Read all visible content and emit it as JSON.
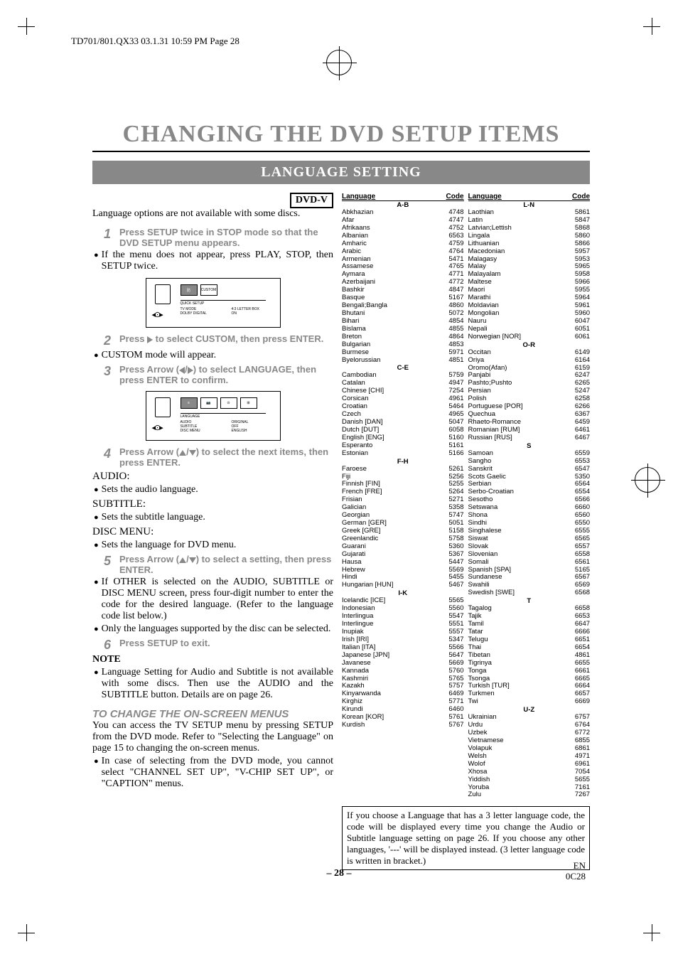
{
  "header_line": "TD701/801.QX33  03.1.31 10:59 PM  Page 28",
  "title": "CHANGING THE DVD SETUP ITEMS",
  "subtitle": "LANGUAGE SETTING",
  "dvd_badge": "DVD-V",
  "intro": "Language options are not available with some discs.",
  "step1": {
    "num": "1",
    "text": "Press SETUP twice in STOP mode so that the DVD SETUP menu appears."
  },
  "bullet1": "If the menu does not appear, press PLAY, STOP, then SETUP twice.",
  "diagram1": {
    "tabs": [
      "防",
      "CUSTOM"
    ],
    "label": "QUICK SETUP",
    "opts_left": "TV MODE\nDOLBY DIGITAL",
    "opts_right": "4:3 LETTER BOX\nON"
  },
  "step2": {
    "num": "2",
    "text_pre": "Press ",
    "text_post": " to select CUSTOM, then press ENTER."
  },
  "bullet2": "CUSTOM mode will appear.",
  "step3": {
    "num": "3",
    "text_pre": "Press Arrow (",
    "text_post": ") to select LANGUAGE, then press ENTER to confirm."
  },
  "diagram2": {
    "tabs": [
      "≡",
      "📷",
      "⊙",
      "⊞"
    ],
    "label": "LANGUAGE",
    "opts_left": "AUDIO\nSUBTITLE\nDISC MENU",
    "opts_right": "ORIGINAL\nOFF\nENGLISH"
  },
  "step4": {
    "num": "4",
    "text_pre": "Press Arrow (",
    "text_post": ") to select the next items, then press ENTER."
  },
  "audio_label": "AUDIO:",
  "audio_bullet": "Sets the audio language.",
  "subtitle_label": "SUBTITLE:",
  "subtitle_bullet": "Sets the subtitle language.",
  "disc_label": "DISC MENU:",
  "disc_bullet": "Sets the language for DVD menu.",
  "step5": {
    "num": "5",
    "text_pre": "Press Arrow (",
    "text_post": ") to select a setting, then press ENTER."
  },
  "bullet5a": "If OTHER is selected on the AUDIO, SUBTITLE or DISC MENU screen, press four-digit number to enter the code for the desired language. (Refer to the language code list below.)",
  "bullet5b": "Only the languages supported by the disc can be selected.",
  "step6": {
    "num": "6",
    "text": "Press SETUP to exit."
  },
  "note_label": "NOTE",
  "note_bullet": "Language Setting for Audio and Subtitle is not available with some discs. Then use the AUDIO and the SUBTITLE button. Details are on page 26.",
  "change_title": "TO CHANGE THE ON-SCREEN MENUS",
  "change_body": "You can access the TV SETUP menu by pressing SETUP from the DVD mode. Refer to \"Selecting the Language\" on page 15 to changing the on-screen menus.",
  "change_bullet": "In case of selecting from the DVD mode, you cannot select \"CHANNEL SET UP\", \"V-CHIP SET UP\", or \"CAPTION\" menus.",
  "table_header": {
    "lang": "Language",
    "code": "Code"
  },
  "col1": [
    {
      "section": "A-B"
    },
    {
      "l": "Abkhazian",
      "c": "4748"
    },
    {
      "l": "Afar",
      "c": "4747"
    },
    {
      "l": "Afrikaans",
      "c": "4752"
    },
    {
      "l": "Albanian",
      "c": "6563"
    },
    {
      "l": "Amharic",
      "c": "4759"
    },
    {
      "l": "Arabic",
      "c": "4764"
    },
    {
      "l": "Armenian",
      "c": "5471"
    },
    {
      "l": "Assamese",
      "c": "4765"
    },
    {
      "l": "Aymara",
      "c": "4771"
    },
    {
      "l": "Azerbaijani",
      "c": "4772"
    },
    {
      "l": "Bashkir",
      "c": "4847"
    },
    {
      "l": "Basque",
      "c": "5167"
    },
    {
      "l": "Bengali;Bangla",
      "c": "4860"
    },
    {
      "l": "Bhutani",
      "c": "5072"
    },
    {
      "l": "Bihari",
      "c": "4854"
    },
    {
      "l": "Bislama",
      "c": "4855"
    },
    {
      "l": "Breton",
      "c": "4864"
    },
    {
      "l": "Bulgarian",
      "c": "4853"
    },
    {
      "l": "Burmese",
      "c": "5971"
    },
    {
      "l": "Byelorussian",
      "c": "4851"
    },
    {
      "section": "C-E"
    },
    {
      "l": "Cambodian",
      "c": "5759"
    },
    {
      "l": "Catalan",
      "c": "4947"
    },
    {
      "l": "Chinese [CHI]",
      "c": "7254"
    },
    {
      "l": "Corsican",
      "c": "4961"
    },
    {
      "l": "Croatian",
      "c": "5464"
    },
    {
      "l": "Czech",
      "c": "4965"
    },
    {
      "l": "Danish [DAN]",
      "c": "5047"
    },
    {
      "l": "Dutch [DUT]",
      "c": "6058"
    },
    {
      "l": "English [ENG]",
      "c": "5160"
    },
    {
      "l": "Esperanto",
      "c": "5161"
    },
    {
      "l": "Estonian",
      "c": "5166"
    },
    {
      "section": "F-H"
    },
    {
      "l": "Faroese",
      "c": "5261"
    },
    {
      "l": "Fiji",
      "c": "5256"
    },
    {
      "l": "Finnish [FIN]",
      "c": "5255"
    },
    {
      "l": "French [FRE]",
      "c": "5264"
    },
    {
      "l": "Frisian",
      "c": "5271"
    },
    {
      "l": "Galician",
      "c": "5358"
    },
    {
      "l": "Georgian",
      "c": "5747"
    },
    {
      "l": "German [GER]",
      "c": "5051"
    },
    {
      "l": "Greek [GRE]",
      "c": "5158"
    },
    {
      "l": "Greenlandic",
      "c": "5758"
    },
    {
      "l": "Guarani",
      "c": "5360"
    },
    {
      "l": "Gujarati",
      "c": "5367"
    },
    {
      "l": "Hausa",
      "c": "5447"
    },
    {
      "l": "Hebrew",
      "c": "5569"
    },
    {
      "l": "Hindi",
      "c": "5455"
    },
    {
      "l": "Hungarian [HUN]",
      "c": "5467"
    },
    {
      "section": "I-K"
    },
    {
      "l": "Icelandic [ICE]",
      "c": "5565"
    },
    {
      "l": "Indonesian",
      "c": "5560"
    },
    {
      "l": "Interlingua",
      "c": "5547"
    },
    {
      "l": "Interlingue",
      "c": "5551"
    },
    {
      "l": "Inupiak",
      "c": "5557"
    },
    {
      "l": "Irish [IRI]",
      "c": "5347"
    },
    {
      "l": "Italian [ITA]",
      "c": "5566"
    },
    {
      "l": "Japanese [JPN]",
      "c": "5647"
    },
    {
      "l": "Javanese",
      "c": "5669"
    },
    {
      "l": "Kannada",
      "c": "5760"
    },
    {
      "l": "Kashmiri",
      "c": "5765"
    },
    {
      "l": "Kazakh",
      "c": "5757"
    },
    {
      "l": "Kinyarwanda",
      "c": "6469"
    },
    {
      "l": "Kirghiz",
      "c": "5771"
    },
    {
      "l": "Kirundi",
      "c": "6460"
    },
    {
      "l": "Korean [KOR]",
      "c": "5761"
    },
    {
      "l": "Kurdish",
      "c": "5767"
    }
  ],
  "col2": [
    {
      "section": "L-N"
    },
    {
      "l": "Laothian",
      "c": "5861"
    },
    {
      "l": "Latin",
      "c": "5847"
    },
    {
      "l": "Latvian;Lettish",
      "c": "5868"
    },
    {
      "l": "Lingala",
      "c": "5860"
    },
    {
      "l": "Lithuanian",
      "c": "5866"
    },
    {
      "l": "Macedonian",
      "c": "5957"
    },
    {
      "l": "Malagasy",
      "c": "5953"
    },
    {
      "l": "Malay",
      "c": "5965"
    },
    {
      "l": "Malayalam",
      "c": "5958"
    },
    {
      "l": "Maltese",
      "c": "5966"
    },
    {
      "l": "Maori",
      "c": "5955"
    },
    {
      "l": "Marathi",
      "c": "5964"
    },
    {
      "l": "Moldavian",
      "c": "5961"
    },
    {
      "l": "Mongolian",
      "c": "5960"
    },
    {
      "l": "Nauru",
      "c": "6047"
    },
    {
      "l": "Nepali",
      "c": "6051"
    },
    {
      "l": "Norwegian [NOR]",
      "c": "6061"
    },
    {
      "section": "O-R"
    },
    {
      "l": "Occitan",
      "c": "6149"
    },
    {
      "l": "Oriya",
      "c": "6164"
    },
    {
      "l": "Oromo(Afan)",
      "c": "6159"
    },
    {
      "l": "Panjabi",
      "c": "6247"
    },
    {
      "l": "Pashto;Pushto",
      "c": "6265"
    },
    {
      "l": "Persian",
      "c": "5247"
    },
    {
      "l": "Polish",
      "c": "6258"
    },
    {
      "l": "Portuguese [POR]",
      "c": "6266"
    },
    {
      "l": "Quechua",
      "c": "6367"
    },
    {
      "l": "Rhaeto-Romance",
      "c": "6459"
    },
    {
      "l": "Romanian [RUM]",
      "c": "6461"
    },
    {
      "l": "Russian [RUS]",
      "c": "6467"
    },
    {
      "section": "S"
    },
    {
      "l": "Samoan",
      "c": "6559"
    },
    {
      "l": "Sangho",
      "c": "6553"
    },
    {
      "l": "Sanskrit",
      "c": "6547"
    },
    {
      "l": "Scots Gaelic",
      "c": "5350"
    },
    {
      "l": "Serbian",
      "c": "6564"
    },
    {
      "l": "Serbo-Croatian",
      "c": "6554"
    },
    {
      "l": "Sesotho",
      "c": "6566"
    },
    {
      "l": "Setswana",
      "c": "6660"
    },
    {
      "l": "Shona",
      "c": "6560"
    },
    {
      "l": "Sindhi",
      "c": "6550"
    },
    {
      "l": "Singhalese",
      "c": "6555"
    },
    {
      "l": "Siswat",
      "c": "6565"
    },
    {
      "l": "Slovak",
      "c": "6557"
    },
    {
      "l": "Slovenian",
      "c": "6558"
    },
    {
      "l": "Somali",
      "c": "6561"
    },
    {
      "l": "Spanish [SPA]",
      "c": "5165"
    },
    {
      "l": "Sundanese",
      "c": "6567"
    },
    {
      "l": "Swahili",
      "c": "6569"
    },
    {
      "l": "Swedish [SWE]",
      "c": "6568"
    },
    {
      "section": "T"
    },
    {
      "l": "Tagalog",
      "c": "6658"
    },
    {
      "l": "Tajik",
      "c": "6653"
    },
    {
      "l": "Tamil",
      "c": "6647"
    },
    {
      "l": "Tatar",
      "c": "6666"
    },
    {
      "l": "Telugu",
      "c": "6651"
    },
    {
      "l": "Thai",
      "c": "6654"
    },
    {
      "l": "Tibetan",
      "c": "4861"
    },
    {
      "l": "Tigrinya",
      "c": "6655"
    },
    {
      "l": "Tonga",
      "c": "6661"
    },
    {
      "l": "Tsonga",
      "c": "6665"
    },
    {
      "l": "Turkish [TUR]",
      "c": "6664"
    },
    {
      "l": "Turkmen",
      "c": "6657"
    },
    {
      "l": "Twi",
      "c": "6669"
    },
    {
      "section": "U-Z"
    },
    {
      "l": "Ukrainian",
      "c": "6757"
    },
    {
      "l": "Urdu",
      "c": "6764"
    },
    {
      "l": "Uzbek",
      "c": "6772"
    },
    {
      "l": "Vietnamese",
      "c": "6855"
    },
    {
      "l": "Volapuk",
      "c": "6861"
    },
    {
      "l": "Welsh",
      "c": "4971"
    },
    {
      "l": "Wolof",
      "c": "6961"
    },
    {
      "l": "Xhosa",
      "c": "7054"
    },
    {
      "l": "Yiddish",
      "c": "5655"
    },
    {
      "l": "Yoruba",
      "c": "7161"
    },
    {
      "l": "Zulu",
      "c": "7267"
    }
  ],
  "code_note": "If you choose a Language that has a 3 letter language code, the code will be displayed every time you change the Audio or Subtitle language setting on page 26. If you choose any other languages, '---' will be displayed instead. (3 letter language code is written in bracket.)",
  "page_num": "– 28 –",
  "footer_en": "EN",
  "footer_code": "0C28"
}
